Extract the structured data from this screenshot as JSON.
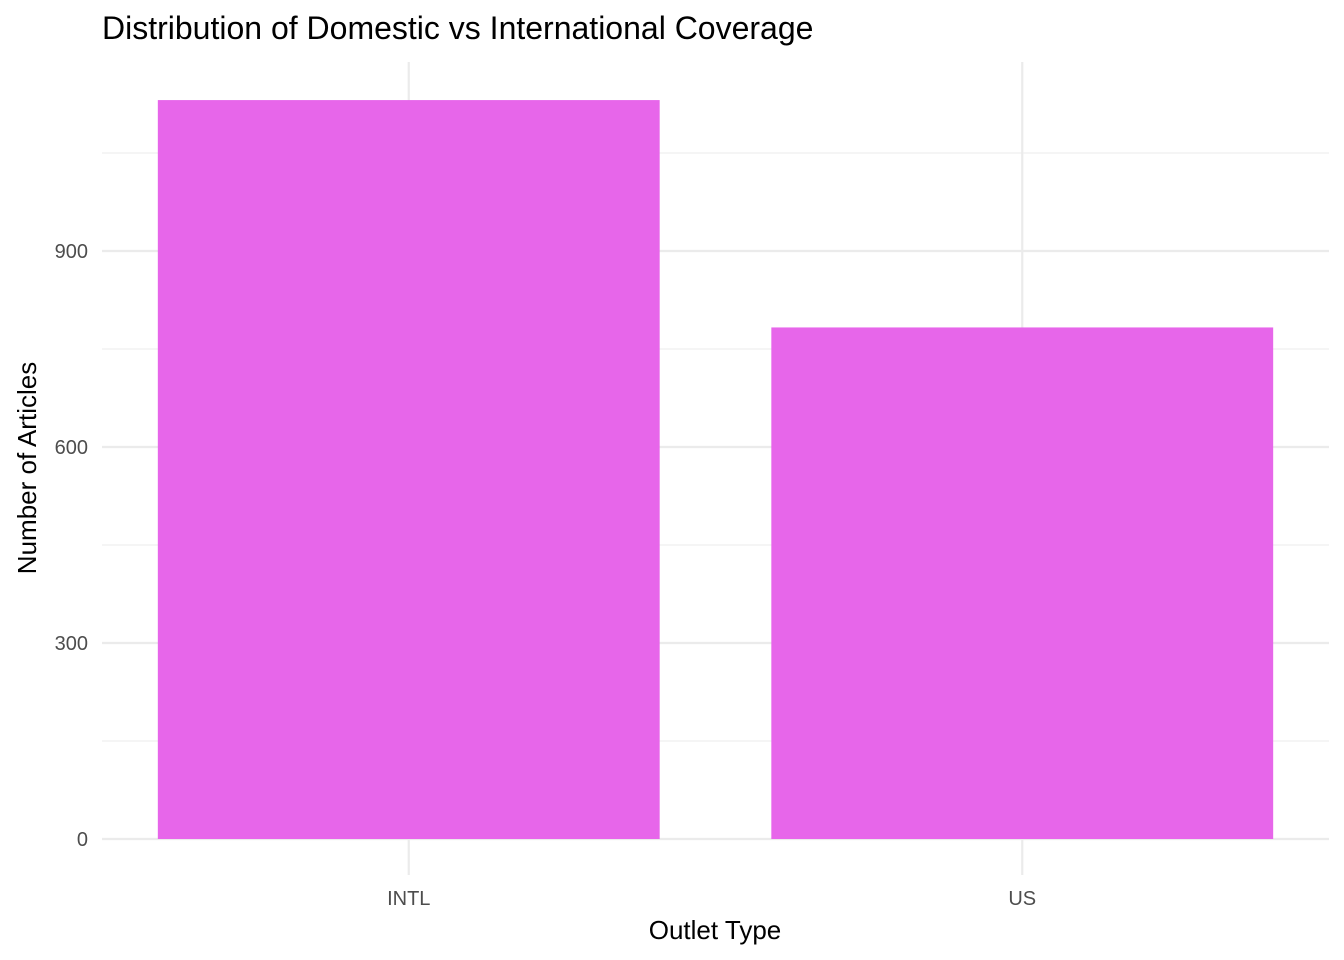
{
  "chart_data": {
    "type": "bar",
    "title": "Distribution of Domestic vs International Coverage",
    "xlabel": "Outlet Type",
    "ylabel": "Number of Articles",
    "categories": [
      "INTL",
      "US"
    ],
    "values": [
      1131,
      783
    ],
    "ylim": [
      0,
      1188
    ],
    "yticks": [
      0,
      300,
      600,
      900
    ],
    "ytick_labels": [
      "0",
      "300",
      "600",
      "900"
    ],
    "grid": true,
    "bar_color": "#E766EA",
    "grid_color": "#EBEBEB"
  }
}
